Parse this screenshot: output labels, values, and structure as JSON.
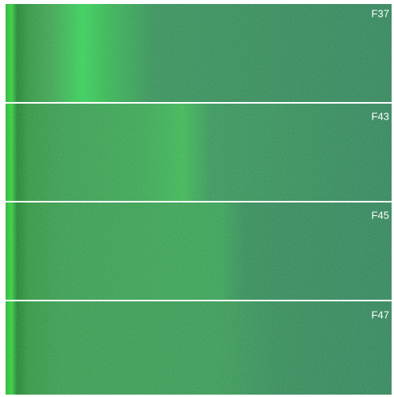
{
  "panels": [
    {
      "label": "F37"
    },
    {
      "label": "F43"
    },
    {
      "label": "F45"
    },
    {
      "label": "F47"
    }
  ]
}
